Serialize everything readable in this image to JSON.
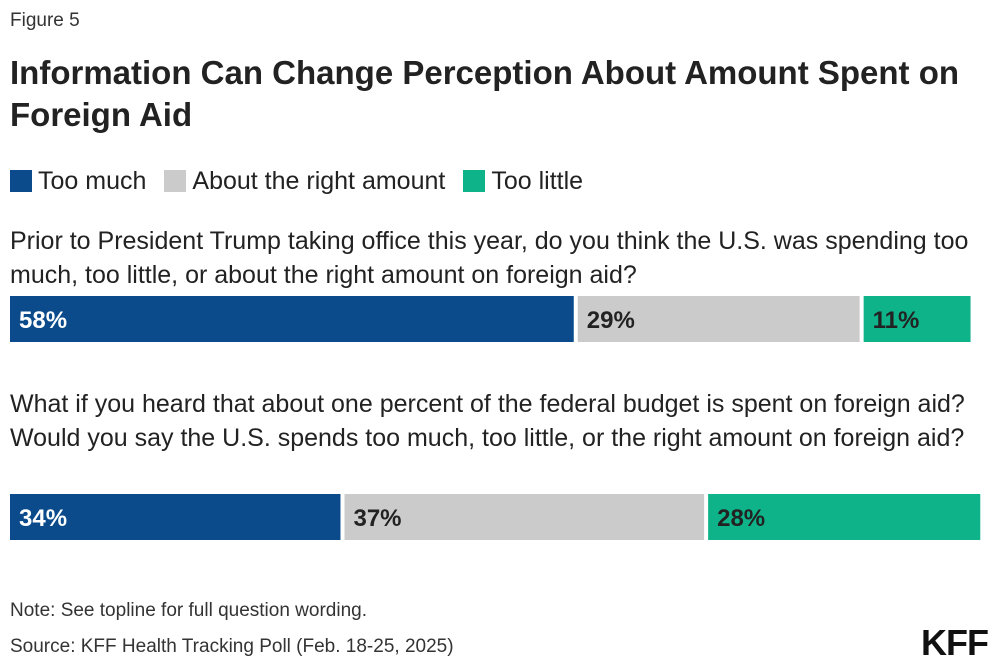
{
  "figure_label": "Figure 5",
  "chart_data": {
    "type": "bar",
    "orientation": "horizontal-stacked",
    "title": "Information Can Change Perception About Amount Spent on Foreign Aid",
    "legend": [
      "Too much",
      "About the right amount",
      "Too little"
    ],
    "legend_placement": "top-left",
    "colors": [
      "#0b4b8c",
      "#cbcbcb",
      "#0fb38a"
    ],
    "label_colors": [
      "#ffffff",
      "#222222",
      "#222222"
    ],
    "categories": [
      "Prior to President Trump taking office this year, do you think the U.S. was spending too much, too little, or about the right amount on foreign aid?",
      "What if you heard that about one percent of the federal budget is spent on foreign aid? Would you say the U.S. spends too much, too little, or the right amount on foreign aid?"
    ],
    "series": [
      {
        "name": "Too much",
        "values": [
          58,
          34
        ],
        "labels": [
          "58%",
          "34%"
        ]
      },
      {
        "name": "About the right amount",
        "values": [
          29,
          37
        ],
        "labels": [
          "29%",
          "37%"
        ]
      },
      {
        "name": "Too little",
        "values": [
          11,
          28
        ],
        "labels": [
          "11%",
          "28%"
        ]
      }
    ],
    "xlim": [
      0,
      100
    ]
  },
  "footer": {
    "note": "Note: See topline for full question wording.",
    "source": "Source: KFF Health Tracking Poll (Feb. 18-25, 2025)",
    "logo": "KFF"
  }
}
